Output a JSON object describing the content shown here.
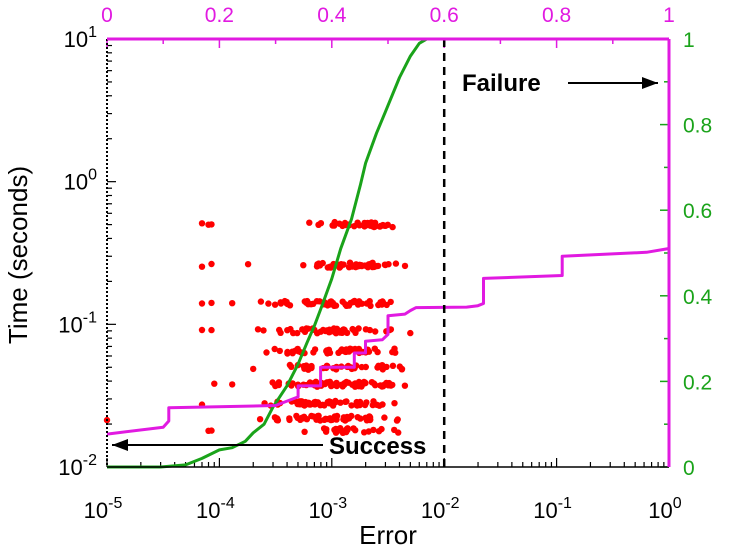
{
  "chart_data": {
    "type": "scatter",
    "xlabel": "Error",
    "ylabel": "Time (seconds)",
    "x_scale": "log",
    "y_scale": "log",
    "xlim": [
      1e-05,
      1
    ],
    "ylim": [
      0.01,
      10
    ],
    "x_ticks": [
      {
        "value": 1e-05,
        "base": "10",
        "exp": "-5"
      },
      {
        "value": 0.0001,
        "base": "10",
        "exp": "-4"
      },
      {
        "value": 0.001,
        "base": "10",
        "exp": "-3"
      },
      {
        "value": 0.01,
        "base": "10",
        "exp": "-2"
      },
      {
        "value": 0.1,
        "base": "10",
        "exp": "-1"
      },
      {
        "value": 1,
        "base": "10",
        "exp": "0"
      }
    ],
    "y_ticks": [
      {
        "value": 0.01,
        "base": "10",
        "exp": "-2"
      },
      {
        "value": 0.1,
        "base": "10",
        "exp": "-1"
      },
      {
        "value": 1,
        "base": "10",
        "exp": "0"
      },
      {
        "value": 10,
        "base": "10",
        "exp": "1"
      }
    ],
    "top_axis": {
      "range": [
        0,
        1
      ],
      "ticks": [
        "0",
        "0.2",
        "0.4",
        "0.6",
        "0.8",
        "1"
      ],
      "color": "#e11ae1"
    },
    "right_axis": {
      "range": [
        0,
        1
      ],
      "ticks": [
        "0",
        "0.2",
        "0.4",
        "0.6",
        "0.8",
        "1"
      ],
      "color": "#1aa31a"
    },
    "threshold": {
      "x": 0.01
    },
    "annotations": {
      "success": "Success",
      "failure": "Failure"
    },
    "scatter_color": "#ff0000",
    "scatter_bands": [
      {
        "time": 0.5,
        "x_min": 0.00045,
        "x_max": 0.006,
        "count": 34,
        "extra_x": [
          7e-05,
          8e-05,
          8.5e-05
        ]
      },
      {
        "time": 0.26,
        "x_min": 0.00032,
        "x_max": 0.006,
        "count": 46,
        "extra_x": [
          7e-05,
          8.5e-05,
          0.00018
        ]
      },
      {
        "time": 0.14,
        "x_min": 0.00018,
        "x_max": 0.006,
        "count": 55,
        "extra_x": [
          7e-05,
          8.5e-05,
          0.00013
        ]
      },
      {
        "time": 0.09,
        "x_min": 0.00018,
        "x_max": 0.006,
        "count": 48,
        "extra_x": [
          7e-05,
          8.5e-05
        ]
      },
      {
        "time": 0.065,
        "x_min": 0.0002,
        "x_max": 0.006,
        "count": 42,
        "extra_x": []
      },
      {
        "time": 0.05,
        "x_min": 0.0003,
        "x_max": 0.006,
        "count": 40,
        "extra_x": [
          0.0002
        ]
      },
      {
        "time": 0.038,
        "x_min": 0.0002,
        "x_max": 0.005,
        "count": 70,
        "extra_x": [
          9e-05,
          0.00013
        ]
      },
      {
        "time": 0.028,
        "x_min": 0.0002,
        "x_max": 0.005,
        "count": 56,
        "extra_x": [
          7e-05
        ]
      },
      {
        "time": 0.022,
        "x_min": 0.0002,
        "x_max": 0.005,
        "count": 48,
        "extra_x": [
          1e-05
        ]
      },
      {
        "time": 0.018,
        "x_min": 0.0003,
        "x_max": 0.005,
        "count": 26,
        "extra_x": [
          8e-05,
          8.5e-05
        ]
      }
    ],
    "series": [
      {
        "color": "#1aa31a",
        "axis": "bottom-right",
        "points": [
          [
            1e-05,
            0.0
          ],
          [
            3e-05,
            0.0
          ],
          [
            5e-05,
            0.005
          ],
          [
            7e-05,
            0.02
          ],
          [
            0.0001,
            0.04
          ],
          [
            0.00013,
            0.045
          ],
          [
            0.00017,
            0.06
          ],
          [
            0.0002,
            0.08
          ],
          [
            0.00025,
            0.1
          ],
          [
            0.0003,
            0.14
          ],
          [
            0.0004,
            0.19
          ],
          [
            0.0005,
            0.24
          ],
          [
            0.0006,
            0.29
          ],
          [
            0.0007,
            0.33
          ],
          [
            0.0008,
            0.37
          ],
          [
            0.001,
            0.44
          ],
          [
            0.0012,
            0.51
          ],
          [
            0.0015,
            0.58
          ],
          [
            0.0018,
            0.66
          ],
          [
            0.002,
            0.71
          ],
          [
            0.0025,
            0.78
          ],
          [
            0.003,
            0.83
          ],
          [
            0.004,
            0.91
          ],
          [
            0.005,
            0.96
          ],
          [
            0.006,
            0.99
          ],
          [
            0.007,
            1.0
          ],
          [
            0.0085,
            1.0
          ]
        ]
      },
      {
        "color": "#e11ae1",
        "axis": "top-left",
        "points": [
          [
            0.0,
            0.017
          ],
          [
            0.1,
            0.019
          ],
          [
            0.11,
            0.021
          ],
          [
            0.11,
            0.026
          ],
          [
            0.3,
            0.027
          ],
          [
            0.34,
            0.031
          ],
          [
            0.34,
            0.037
          ],
          [
            0.38,
            0.037
          ],
          [
            0.38,
            0.05
          ],
          [
            0.44,
            0.05
          ],
          [
            0.44,
            0.063
          ],
          [
            0.46,
            0.063
          ],
          [
            0.46,
            0.076
          ],
          [
            0.49,
            0.078
          ],
          [
            0.5,
            0.085
          ],
          [
            0.5,
            0.115
          ],
          [
            0.53,
            0.118
          ],
          [
            0.54,
            0.125
          ],
          [
            0.55,
            0.131
          ],
          [
            0.64,
            0.132
          ],
          [
            0.66,
            0.135
          ],
          [
            0.67,
            0.14
          ],
          [
            0.67,
            0.21
          ],
          [
            0.81,
            0.22
          ],
          [
            0.81,
            0.3
          ],
          [
            0.96,
            0.32
          ],
          [
            1.0,
            0.34
          ],
          [
            1.0,
            10.0
          ]
        ]
      }
    ]
  }
}
